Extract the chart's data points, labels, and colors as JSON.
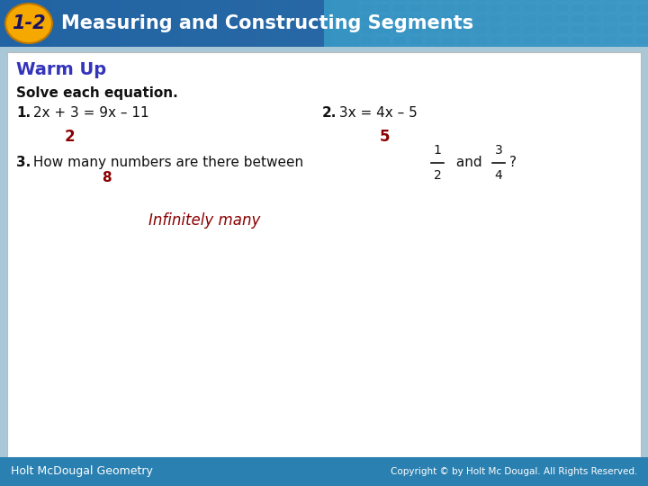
{
  "title_badge": "1-2",
  "title_text": "Measuring and Constructing Segments",
  "header_bg_left": "#2a6fa8",
  "header_bg_right": "#4ab0d0",
  "header_text_color": "#ffffff",
  "badge_bg": "#f5a800",
  "badge_text_color": "#1a1060",
  "warm_up_color": "#3333bb",
  "warm_up_text": "Warm Up",
  "body_bg": "#ffffff",
  "content_text_color": "#111111",
  "answer_color": "#8b0000",
  "solve_text": "Solve each equation.",
  "prob1_label": "1.",
  "prob1_eq": " 2x + 3 = 9x – 11",
  "prob1_ans": "2",
  "prob2_label": "2.",
  "prob2_eq": " 3x = 4x – 5",
  "prob2_ans": "5",
  "prob3_label": "3.",
  "prob3_text": " How many numbers are there between",
  "prob3_ans_x": "8",
  "infinitely_many": "Infinitely many",
  "footer_left": "Holt McDougal Geometry",
  "footer_right": "Copyright © by Holt Mc Dougal. All Rights Reserved.",
  "footer_bg": "#2a80b0",
  "footer_text_color": "#ffffff",
  "outer_bg": "#a8c8d8"
}
